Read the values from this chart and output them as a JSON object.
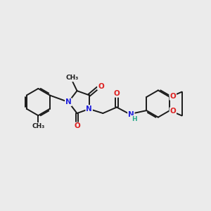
{
  "background_color": "#ebebeb",
  "bond_color": "#1a1a1a",
  "N_color": "#2020dd",
  "O_color": "#dd2020",
  "H_color": "#2aaa8a",
  "figsize": [
    3.0,
    3.0
  ],
  "dpi": 100,
  "xlim": [
    0,
    12
  ],
  "ylim": [
    0,
    10
  ]
}
